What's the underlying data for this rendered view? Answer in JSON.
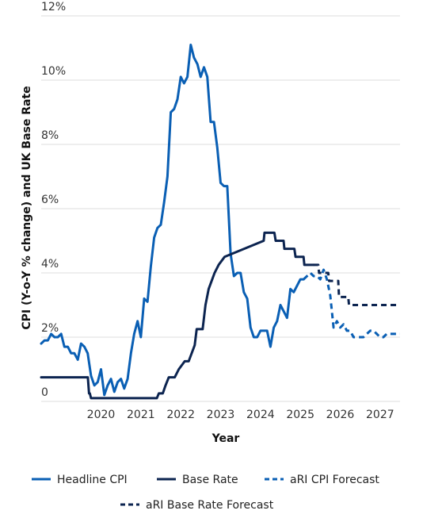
{
  "chart_data": {
    "type": "line",
    "xlabel": "Year",
    "ylabel": "CPI (Y-o-Y % change) and UK Base Rate",
    "xlim": [
      2019.0,
      2028.0
    ],
    "ylim": [
      0,
      12
    ],
    "x_ticks": [
      2020,
      2021,
      2022,
      2023,
      2024,
      2025,
      2026,
      2027
    ],
    "x_tick_labels": [
      "2020",
      "2021",
      "2022",
      "2023",
      "2024",
      "2025",
      "2026",
      "2027"
    ],
    "y_ticks": [
      0,
      2,
      4,
      6,
      8,
      10,
      12
    ],
    "y_tick_labels": [
      "0",
      "2%",
      "4%",
      "6%",
      "8%",
      "10%",
      "12%"
    ],
    "grid": "horizontal",
    "legend_position": "bottom",
    "colors": {
      "headline_cpi": "#0a5fb4",
      "base_rate": "#0c2450",
      "grid": "#dddddd"
    },
    "series": [
      {
        "name": "Headline CPI",
        "style": "solid",
        "color": "#0a5fb4",
        "x": [
          2019.0,
          2019.083,
          2019.167,
          2019.25,
          2019.333,
          2019.417,
          2019.5,
          2019.583,
          2019.667,
          2019.75,
          2019.833,
          2019.917,
          2020.0,
          2020.083,
          2020.167,
          2020.25,
          2020.333,
          2020.417,
          2020.5,
          2020.583,
          2020.667,
          2020.75,
          2020.833,
          2020.917,
          2021.0,
          2021.083,
          2021.167,
          2021.25,
          2021.333,
          2021.417,
          2021.5,
          2021.583,
          2021.667,
          2021.75,
          2021.833,
          2021.917,
          2022.0,
          2022.083,
          2022.167,
          2022.25,
          2022.333,
          2022.417,
          2022.5,
          2022.583,
          2022.667,
          2022.75,
          2022.833,
          2022.917,
          2023.0,
          2023.083,
          2023.167,
          2023.25,
          2023.333,
          2023.417,
          2023.5,
          2023.583,
          2023.667,
          2023.75,
          2023.833,
          2023.917,
          2024.0,
          2024.083,
          2024.167,
          2024.25,
          2024.333,
          2024.417,
          2024.5,
          2024.583,
          2024.667,
          2024.75,
          2024.833,
          2024.917,
          2025.0,
          2025.083,
          2025.167,
          2025.25,
          2025.333,
          2025.417,
          2025.5,
          2025.583
        ],
        "y": [
          1.8,
          1.9,
          1.9,
          2.1,
          2.0,
          2.0,
          2.1,
          1.7,
          1.7,
          1.5,
          1.5,
          1.3,
          1.8,
          1.7,
          1.5,
          0.8,
          0.5,
          0.6,
          1.0,
          0.2,
          0.5,
          0.7,
          0.3,
          0.6,
          0.7,
          0.4,
          0.7,
          1.5,
          2.1,
          2.5,
          2.0,
          3.2,
          3.1,
          4.2,
          5.1,
          5.4,
          5.5,
          6.2,
          7.0,
          9.0,
          9.1,
          9.4,
          10.1,
          9.9,
          10.1,
          11.1,
          10.7,
          10.5,
          10.1,
          10.4,
          10.1,
          8.7,
          8.7,
          7.9,
          6.8,
          6.7,
          6.7,
          4.6,
          3.9,
          4.0,
          4.0,
          3.4,
          3.2,
          2.3,
          2.0,
          2.0,
          2.2,
          2.2,
          2.2,
          1.7,
          2.3,
          2.5,
          3.0,
          2.8,
          2.6,
          3.5,
          3.4,
          3.6,
          3.8,
          3.8
        ]
      },
      {
        "name": "Base Rate",
        "style": "solid",
        "color": "#0c2450",
        "x": [
          2019.0,
          2020.17,
          2020.2,
          2020.22,
          2020.25,
          2021.9,
          2021.95,
          2022.05,
          2022.12,
          2022.2,
          2022.35,
          2022.45,
          2022.6,
          2022.7,
          2022.85,
          2022.9,
          2023.05,
          2023.12,
          2023.2,
          2023.35,
          2023.45,
          2023.6,
          2024.58,
          2024.6,
          2024.85,
          2024.88,
          2025.08,
          2025.1,
          2025.35,
          2025.38,
          2025.58,
          2025.6,
          2025.83
        ],
        "y": [
          0.75,
          0.75,
          0.25,
          0.25,
          0.1,
          0.1,
          0.25,
          0.25,
          0.5,
          0.75,
          0.75,
          1.0,
          1.25,
          1.25,
          1.75,
          2.25,
          2.25,
          3.0,
          3.5,
          4.0,
          4.25,
          4.5,
          5.0,
          5.25,
          5.25,
          5.0,
          5.0,
          4.75,
          4.75,
          4.5,
          4.5,
          4.25,
          4.25
        ]
      },
      {
        "name": "aRI CPI Forecast",
        "style": "dashed",
        "color": "#0a5fb4",
        "x": [
          2025.583,
          2025.667,
          2025.75,
          2025.833,
          2025.917,
          2026.0,
          2026.083,
          2026.167,
          2026.25,
          2026.333,
          2026.417,
          2026.5,
          2026.583,
          2026.667,
          2026.75,
          2026.833,
          2026.917,
          2027.0,
          2027.083,
          2027.167,
          2027.25,
          2027.333,
          2027.417,
          2027.5,
          2027.583,
          2027.667,
          2027.75,
          2027.833,
          2027.917,
          2028.0
        ],
        "y": [
          3.8,
          3.9,
          4.0,
          3.9,
          3.9,
          3.8,
          4.1,
          3.8,
          3.3,
          2.3,
          2.5,
          2.3,
          2.4,
          2.2,
          2.2,
          2.0,
          2.0,
          2.0,
          2.0,
          2.1,
          2.2,
          2.2,
          2.1,
          2.0,
          2.0,
          2.1,
          2.1,
          2.1,
          2.1,
          2.1
        ]
      },
      {
        "name": "aRI Base Rate Forecast",
        "style": "dashed",
        "color": "#0c2450",
        "x": [
          2025.83,
          2025.95,
          2025.97,
          2026.2,
          2026.22,
          2026.45,
          2026.47,
          2026.7,
          2026.72,
          2028.0
        ],
        "y": [
          4.25,
          4.25,
          4.0,
          4.0,
          3.75,
          3.75,
          3.25,
          3.25,
          3.0,
          3.0
        ]
      }
    ]
  }
}
